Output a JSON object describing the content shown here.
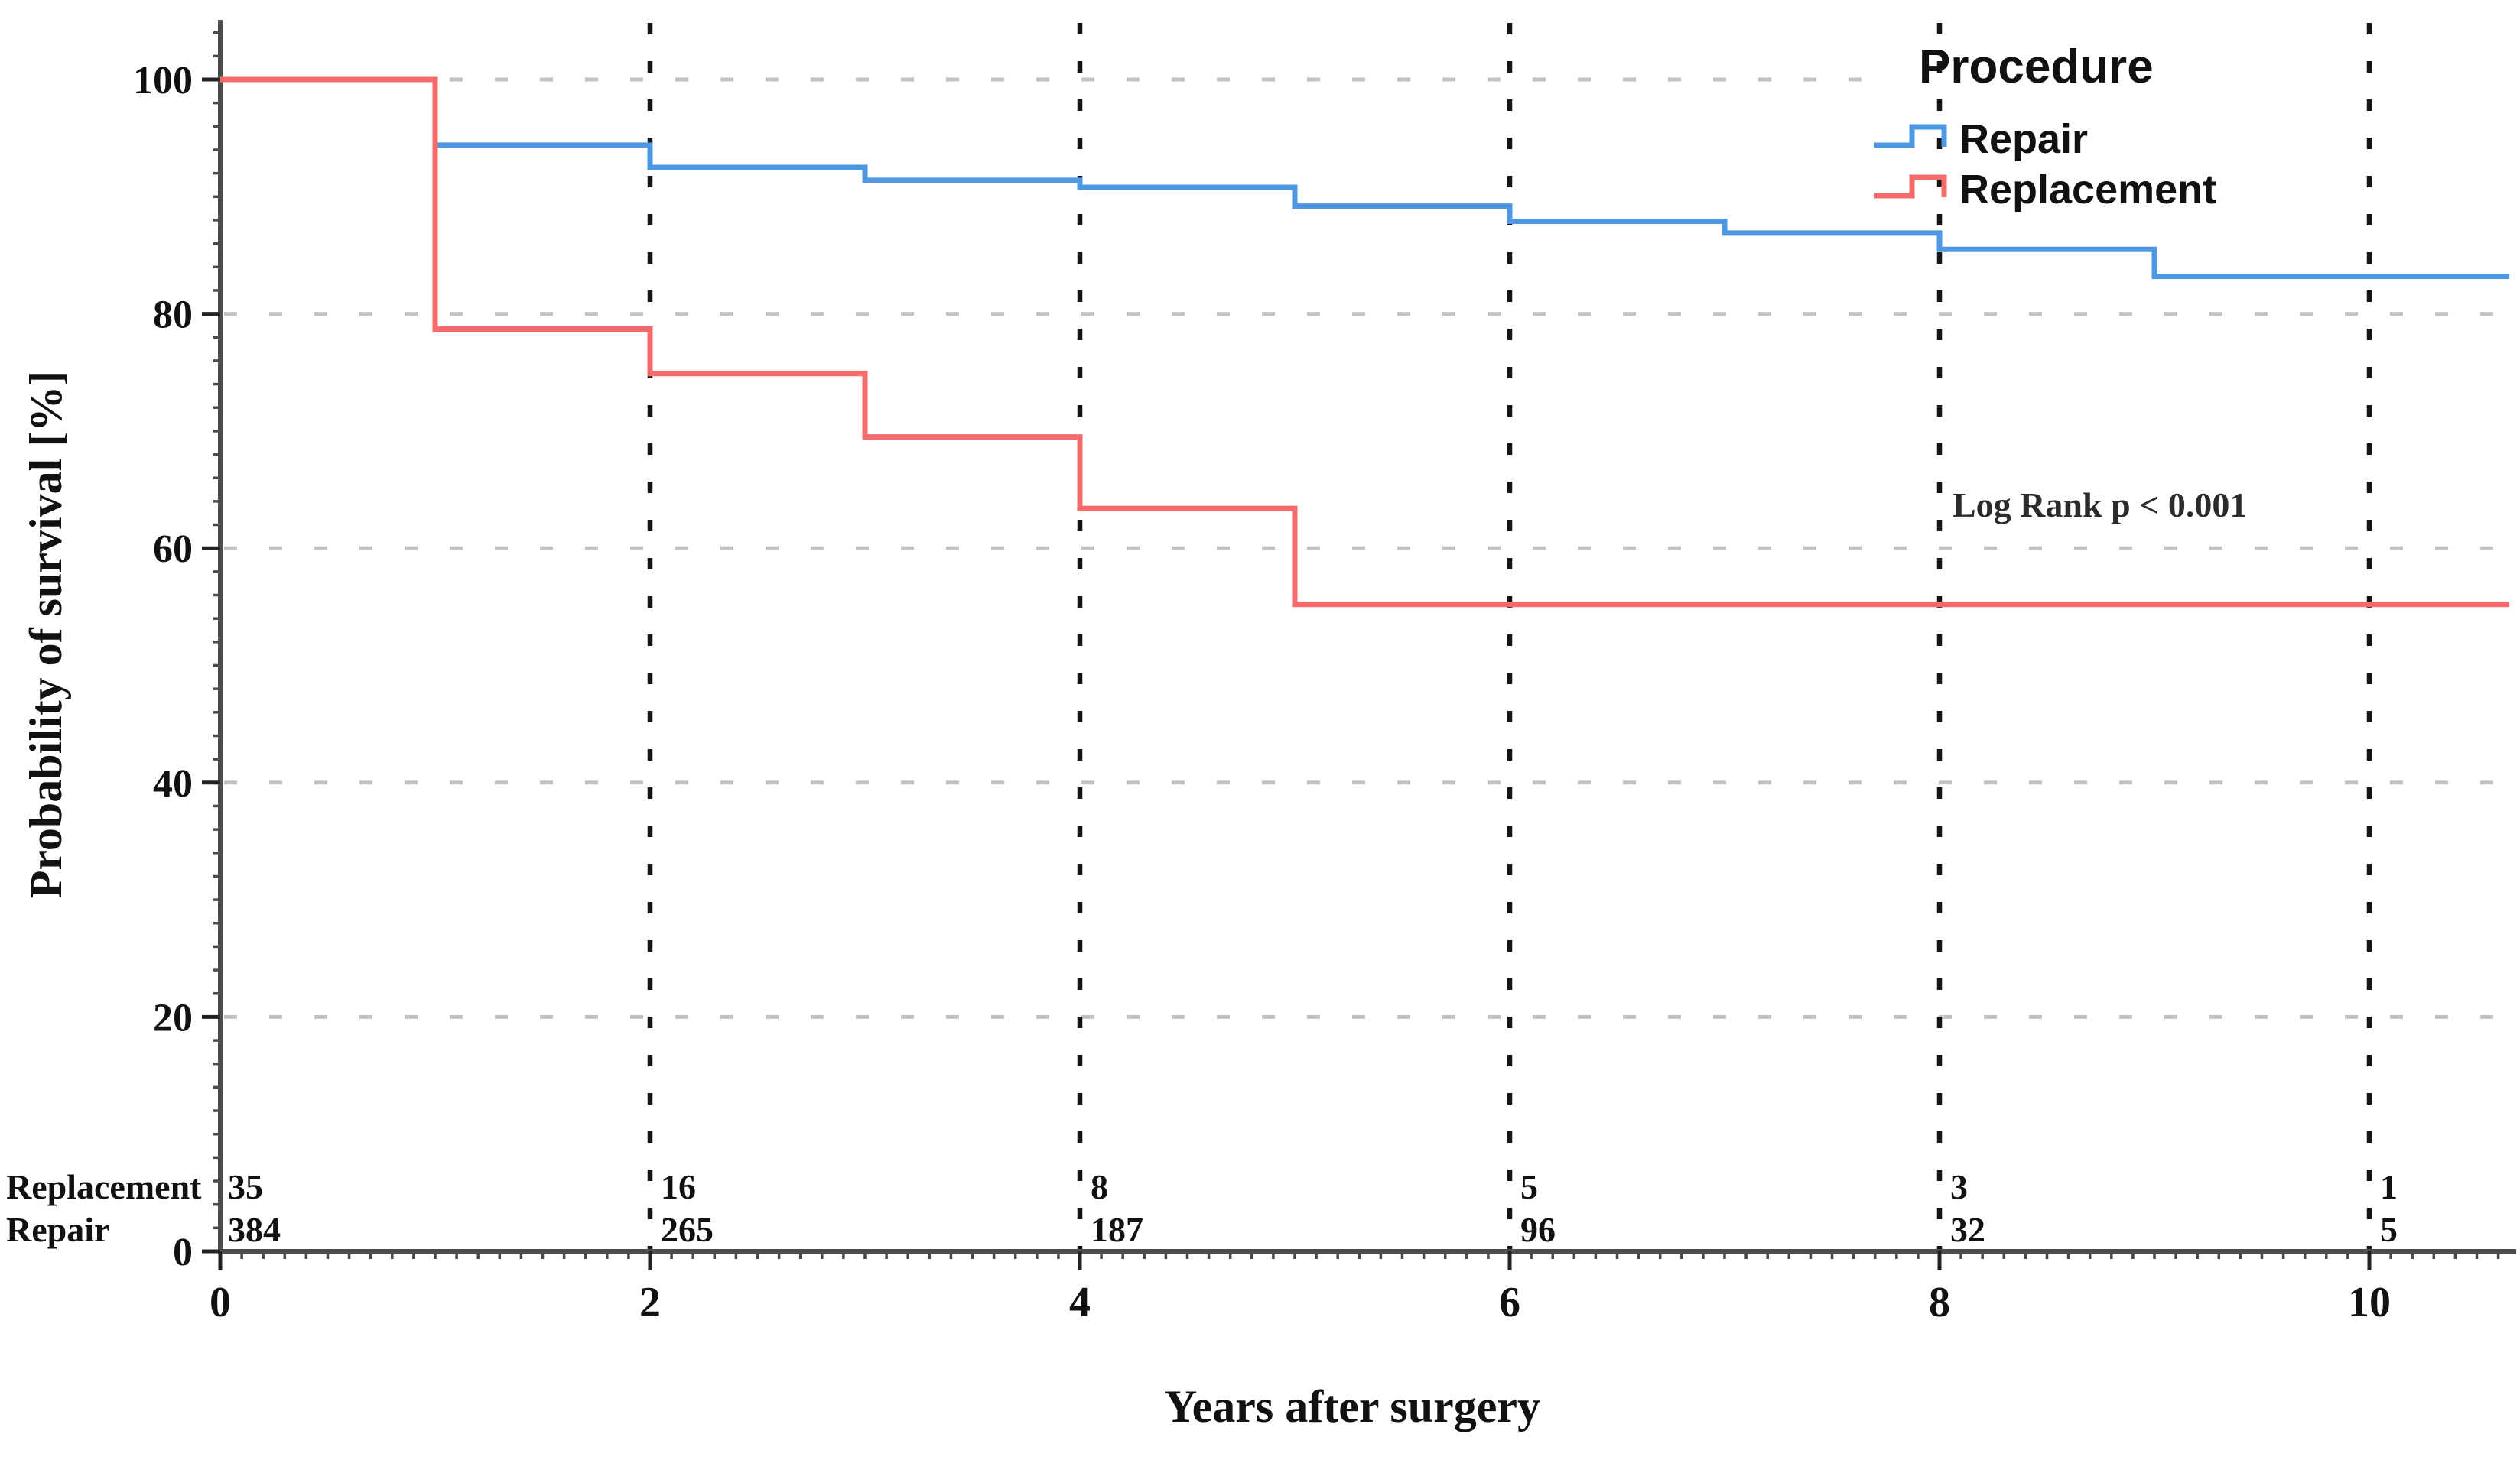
{
  "chart_data": {
    "type": "line",
    "subtype": "kaplan-meier-step",
    "title": "",
    "xlabel": "Years after surgery",
    "ylabel": "Probability of survival [%]",
    "xlim": [
      0,
      10.65
    ],
    "ylim": [
      0,
      105
    ],
    "x_ticks": [
      0,
      2,
      4,
      6,
      8,
      10
    ],
    "y_ticks": [
      0,
      20,
      40,
      60,
      80,
      100
    ],
    "grid": {
      "horizontal": "gray dashed lines at y = 20,40,60,80,100 (100-line stops at legend)",
      "vertical": "black dashed lines at x = 2,4,6,8,10"
    },
    "legend": {
      "title": "Procedure",
      "position": "top-right"
    },
    "annotation": {
      "text": "Log Rank p < 0.001",
      "x_year": 8.06,
      "y_pct": 63
    },
    "series": [
      {
        "name": "Repair",
        "color": "#4e97e3",
        "times": [
          0,
          1,
          2,
          3,
          4,
          5,
          6,
          7,
          8,
          9
        ],
        "survival_pct": [
          100,
          94.4,
          92.5,
          91.4,
          90.8,
          89.2,
          87.9,
          86.9,
          85.5,
          83.2
        ],
        "end_time": 10.65
      },
      {
        "name": "Replacement",
        "color": "#f56b6b",
        "times": [
          0,
          1,
          2,
          3,
          4,
          5
        ],
        "survival_pct": [
          100,
          78.7,
          74.9,
          69.5,
          63.4,
          55.2
        ],
        "end_time": 10.65
      }
    ],
    "at_risk": {
      "times": [
        0,
        2,
        4,
        6,
        8,
        10
      ],
      "rows": [
        {
          "label": "Replacement",
          "values": [
            "35",
            "16",
            "8",
            "5",
            "3",
            "1"
          ]
        },
        {
          "label": "Repair",
          "values": [
            "384",
            "265",
            "187",
            "96",
            "32",
            "5"
          ]
        }
      ]
    }
  }
}
